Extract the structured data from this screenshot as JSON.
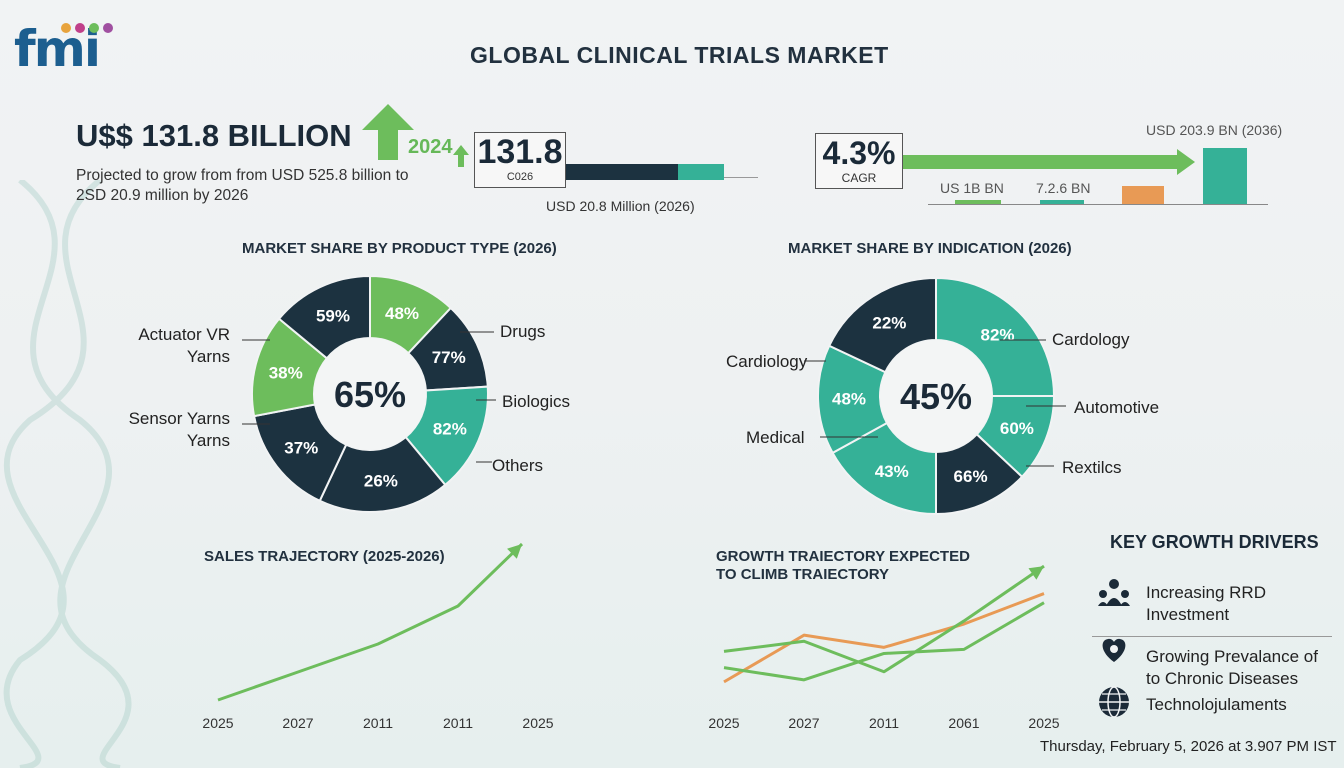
{
  "title": "GLOBAL CLINICAL TRIALS MARKET",
  "logo": {
    "text": "fmi"
  },
  "headline": {
    "value": "U$$ 131.8 BILLION",
    "projection": "Projected to grow from from USD 525.8 billion to 2SD 20.9 million by 2026"
  },
  "market_box": {
    "year_label": "2024",
    "value": "131.8",
    "sub": "C026",
    "note": "USD 20.8 Million (2026)"
  },
  "cagr_box": {
    "value": "4.3%",
    "label": "CAGR",
    "top_label": "USD 203.9 BN (2036)",
    "mini_label_1": "US 1B BN",
    "mini_label_2": "7.2.6 BN"
  },
  "colors": {
    "dark": "#1c3240",
    "teal": "#35b197",
    "green": "#6dbd5c",
    "orange": "#e89a55"
  },
  "chart_data": [
    {
      "type": "pie",
      "title": "MARKET SHARE BY PRODUCT TYPE (2026)",
      "center_label": "65%",
      "slices": [
        {
          "label": "48%",
          "value": 12,
          "color": "#6dbd5c"
        },
        {
          "label": "77%",
          "value": 12,
          "color": "#1c3240"
        },
        {
          "label": "82%",
          "value": 15,
          "color": "#35b197"
        },
        {
          "label": "26%",
          "value": 18,
          "color": "#1c3240"
        },
        {
          "label": "37%",
          "value": 15,
          "color": "#1c3240"
        },
        {
          "label": "38%",
          "value": 14,
          "color": "#6dbd5c"
        },
        {
          "label": "59%",
          "value": 14,
          "color": "#1c3240"
        }
      ],
      "callouts": [
        "Actuator VR Yarns",
        "Sensor Yarns Yarns",
        "Drugs",
        "Biologics",
        "Others"
      ]
    },
    {
      "type": "pie",
      "title": "MARKET SHARE BY INDICATION (2026)",
      "center_label": "45%",
      "slices": [
        {
          "label": "82%",
          "value": 25,
          "color": "#35b197"
        },
        {
          "label": "60%",
          "value": 12,
          "color": "#35b197"
        },
        {
          "label": "66%",
          "value": 13,
          "color": "#1c3240"
        },
        {
          "label": "43%",
          "value": 17,
          "color": "#35b197"
        },
        {
          "label": "48%",
          "value": 15,
          "color": "#35b197"
        },
        {
          "label": "22%",
          "value": 18,
          "color": "#1c3240"
        }
      ],
      "callouts": [
        "Cardology",
        "Automotive",
        "Rextilcs",
        "Cardiology",
        "Medical"
      ]
    },
    {
      "type": "line",
      "title": "SALES TRAJECTORY (2025-2026)",
      "x_ticks": [
        "2025",
        "2027",
        "2011",
        "2011",
        "2025"
      ],
      "series": [
        {
          "color": "#6dbd5c",
          "points": [
            [
              0,
              0
            ],
            [
              1,
              14
            ],
            [
              2,
              28
            ],
            [
              3,
              47
            ],
            [
              3.8,
              78
            ]
          ]
        }
      ],
      "ylim": [
        0,
        85
      ]
    },
    {
      "type": "line",
      "title": "GROWTH TRAIECTORY EXPECTED TO CLIMB TRAIECTORY",
      "x_ticks": [
        "2025",
        "2027",
        "2011",
        "2061",
        "2025"
      ],
      "series": [
        {
          "color": "#e89a55",
          "points": [
            [
              0,
              8
            ],
            [
              1,
              54
            ],
            [
              2,
              42
            ],
            [
              3,
              65
            ],
            [
              4,
              95
            ]
          ]
        },
        {
          "color": "#6dbd5c",
          "points": [
            [
              0,
              38
            ],
            [
              1,
              48
            ],
            [
              2,
              18
            ],
            [
              3,
              68
            ],
            [
              4,
              122
            ]
          ]
        },
        {
          "color": "#6dbd5c",
          "points": [
            [
              0,
              22
            ],
            [
              1,
              10
            ],
            [
              2,
              36
            ],
            [
              3,
              40
            ],
            [
              4,
              86
            ]
          ]
        }
      ],
      "ylim": [
        0,
        130
      ]
    }
  ],
  "drivers": {
    "title": "KEY GROWTH DRIVERS",
    "items": [
      {
        "icon": "people-network-icon",
        "text": "Increasing RRD Investment"
      },
      {
        "icon": "heart-hand-icon",
        "text": "Growing Prevalance of to Chronic Diseases"
      },
      {
        "icon": "globe-icon",
        "text": "Technolojulaments"
      }
    ]
  },
  "footer": {
    "date": "Thursday, February 5, 2026 at 3.907 PM IST"
  }
}
